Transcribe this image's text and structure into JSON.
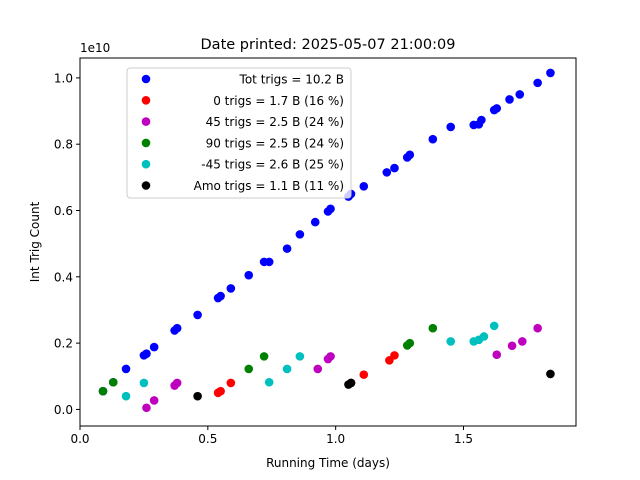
{
  "chart_data": {
    "type": "scatter",
    "title": "Date printed: 2025-05-07 21:00:09",
    "xlabel": "Running Time (days)",
    "ylabel": "Int Trig Count",
    "y_offset_text": "1e10",
    "y_scale": 10000000000,
    "xlim": [
      0.0,
      1.94
    ],
    "ylim": [
      -0.5,
      10.6
    ],
    "xticks": [
      0.0,
      0.5,
      1.0,
      1.5
    ],
    "xtick_labels": [
      "0.0",
      "0.5",
      "1.0",
      "1.5"
    ],
    "yticks": [
      0.0,
      2.0,
      4.0,
      6.0,
      8.0,
      10.0
    ],
    "ytick_labels": [
      "0.0",
      "0.2",
      "0.4",
      "0.6",
      "0.8",
      "1.0"
    ],
    "legend_position": "upper-left",
    "series": [
      {
        "name": "Tot trigs = 10.2 B",
        "color": "#0000ff",
        "x": [
          0.09,
          0.13,
          0.18,
          0.25,
          0.26,
          0.29,
          0.37,
          0.38,
          0.46,
          0.54,
          0.55,
          0.59,
          0.66,
          0.72,
          0.74,
          0.81,
          0.86,
          0.92,
          0.97,
          0.98,
          1.05,
          1.06,
          1.11,
          1.2,
          1.23,
          1.28,
          1.29,
          1.38,
          1.45,
          1.54,
          1.56,
          1.57,
          1.62,
          1.63,
          1.68,
          1.72,
          1.79,
          1.84
        ],
        "y": [
          0.55,
          0.82,
          1.22,
          1.63,
          1.68,
          1.88,
          2.38,
          2.45,
          2.85,
          3.36,
          3.42,
          3.65,
          4.05,
          4.45,
          4.45,
          4.85,
          5.28,
          5.65,
          5.97,
          6.05,
          6.42,
          6.5,
          6.73,
          7.15,
          7.28,
          7.6,
          7.68,
          8.15,
          8.52,
          8.58,
          8.6,
          8.73,
          9.03,
          9.08,
          9.35,
          9.5,
          9.85,
          10.15
        ]
      },
      {
        "name": "0 trigs = 1.7 B (16 %)",
        "color": "#ff0000",
        "x": [
          0.54,
          0.55,
          0.59,
          1.06,
          1.11,
          1.21,
          1.23
        ],
        "y": [
          0.5,
          0.55,
          0.8,
          0.8,
          1.05,
          1.48,
          1.63
        ]
      },
      {
        "name": "45 trigs = 2.5 B (24 %)",
        "color": "#bf00bf",
        "x": [
          0.26,
          0.29,
          0.37,
          0.38,
          0.93,
          0.97,
          0.98,
          1.63,
          1.69,
          1.73,
          1.79
        ],
        "y": [
          0.05,
          0.27,
          0.72,
          0.8,
          1.22,
          1.52,
          1.6,
          1.65,
          1.92,
          2.05,
          2.45
        ]
      },
      {
        "name": "90 trigs = 2.5 B (24 %)",
        "color": "#008000",
        "x": [
          0.09,
          0.13,
          0.66,
          0.72,
          1.28,
          1.29,
          1.38
        ],
        "y": [
          0.55,
          0.82,
          1.22,
          1.6,
          1.93,
          2.0,
          2.45
        ]
      },
      {
        "name": "-45 trigs = 2.6 B (25 %)",
        "color": "#00bfbf",
        "x": [
          0.18,
          0.25,
          0.74,
          0.81,
          0.86,
          1.45,
          1.54,
          1.56,
          1.58,
          1.62
        ],
        "y": [
          0.4,
          0.8,
          0.82,
          1.22,
          1.6,
          2.05,
          2.05,
          2.1,
          2.2,
          2.52
        ]
      },
      {
        "name": "Amo trigs = 1.1 B (11 %)",
        "color": "#000000",
        "x": [
          0.46,
          1.05,
          1.06,
          1.84
        ],
        "y": [
          0.4,
          0.75,
          0.8,
          1.07
        ]
      }
    ],
    "legend": [
      "      Tot trigs = 10.2 B",
      "        0 trigs = 1.7 B (16 %)",
      "       45 trigs = 2.5 B (24 %)",
      "       90 trigs = 2.5 B (24 %)",
      "      -45 trigs = 2.6 B (25 %)",
      "Amo trigs = 1.1 B (11 %)"
    ]
  }
}
